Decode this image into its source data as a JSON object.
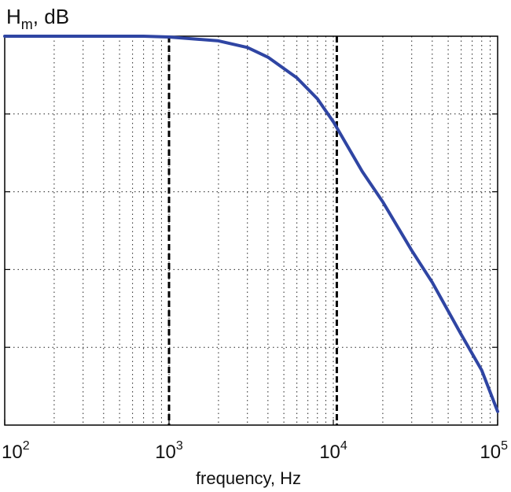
{
  "chart_data": {
    "type": "line",
    "ylabel": {
      "main": "H",
      "sub": "m",
      "rest": ", dB"
    },
    "xlabel": "frequency, Hz",
    "xscale": "log",
    "xlim": [
      100,
      100000
    ],
    "ylim": [
      0,
      1
    ],
    "grid": true,
    "x_ticks": [
      {
        "base": "10",
        "exp": "2",
        "value": 100
      },
      {
        "base": "10",
        "exp": "3",
        "value": 1000
      },
      {
        "base": "10",
        "exp": "4",
        "value": 10000
      },
      {
        "base": "10",
        "exp": "5",
        "value": 100000
      }
    ],
    "y_gridlines": [
      0.2,
      0.4,
      0.6,
      0.8
    ],
    "marker_lines_x": [
      1000,
      10500
    ],
    "series": [
      {
        "color": "#2f45a3",
        "x": [
          100,
          700,
          1000,
          2000,
          3000,
          4000,
          6000,
          8000,
          10000,
          15000,
          20000,
          30000,
          40000,
          60000,
          80000,
          100000
        ],
        "y": [
          1.0,
          1.0,
          0.998,
          0.988,
          0.971,
          0.946,
          0.893,
          0.839,
          0.78,
          0.652,
          0.574,
          0.449,
          0.367,
          0.233,
          0.141,
          0.035
        ]
      }
    ]
  }
}
